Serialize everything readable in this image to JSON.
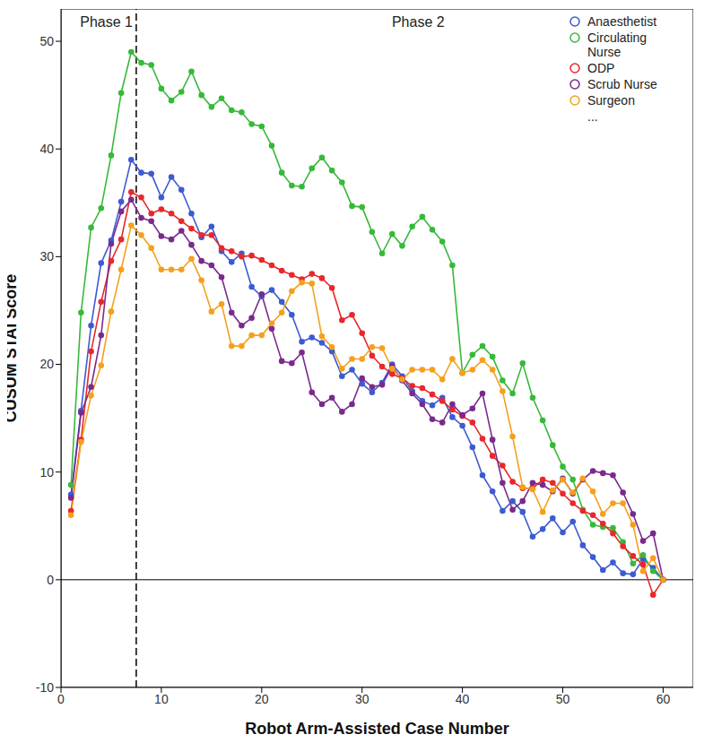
{
  "chart_data": {
    "type": "line",
    "x_label": "Robot Arm-Assisted Case Number",
    "y_label": "CUSUM STAI Score",
    "annotations": [
      "Phase 1",
      "Phase 2",
      "..."
    ],
    "phase_boundary": 7.5,
    "reference_line": 0,
    "x": [
      1,
      2,
      3,
      4,
      5,
      6,
      7,
      8,
      9,
      10,
      11,
      12,
      13,
      14,
      15,
      16,
      17,
      18,
      19,
      20,
      21,
      22,
      23,
      24,
      25,
      26,
      27,
      28,
      29,
      30,
      31,
      32,
      33,
      34,
      35,
      36,
      37,
      38,
      39,
      40,
      41,
      42,
      43,
      44,
      45,
      46,
      47,
      48,
      49,
      50,
      51,
      52,
      53,
      54,
      55,
      56,
      57,
      58,
      59,
      60
    ],
    "xlim": [
      0,
      63
    ],
    "xticks": [
      0,
      10,
      20,
      30,
      40,
      50,
      60
    ],
    "ylim": [
      -10,
      53
    ],
    "yticks": [
      -10,
      0,
      10,
      20,
      30,
      40,
      50
    ],
    "legend": "top right",
    "grid": false,
    "series": [
      {
        "name": "Anaesthetist",
        "color": "#3d5bd1",
        "marker": "circle",
        "line_style": "solid",
        "values": [
          7.9,
          15.7,
          23.6,
          29.4,
          31.5,
          35.1,
          39,
          37.8,
          37.7,
          35.5,
          37.4,
          36.2,
          34,
          31.8,
          32.8,
          30.5,
          29.5,
          30.3,
          27.2,
          26.3,
          26.9,
          25.8,
          24.6,
          22.1,
          22.5,
          22,
          21.2,
          18.9,
          19.5,
          18.2,
          17.4,
          18.3,
          20,
          18.9,
          17.5,
          16.6,
          16.2,
          16.9,
          15.1,
          14.3,
          12.3,
          9.7,
          8.2,
          6.4,
          7.3,
          6.3,
          4,
          4.7,
          5.7,
          4.4,
          5.4,
          3.2,
          2.1,
          0.9,
          1.6,
          0.6,
          0.5,
          1.9,
          1.1,
          0
        ]
      },
      {
        "name": "Circulating Nurse",
        "color": "#37b93a",
        "marker": "circle",
        "line_style": "solid",
        "values": [
          8.8,
          24.8,
          32.7,
          34.5,
          39.4,
          45.2,
          49,
          48,
          47.8,
          45.6,
          44.5,
          45.3,
          47.2,
          45,
          43.9,
          44.7,
          43.6,
          43.4,
          42.3,
          42.1,
          40.3,
          37.8,
          36.6,
          36.5,
          38.2,
          39.2,
          38,
          36.9,
          34.7,
          34.6,
          32.3,
          30.3,
          32.1,
          31,
          32.8,
          33.7,
          32.5,
          31.4,
          29.2,
          19.2,
          20.9,
          21.7,
          20.7,
          18.5,
          17.3,
          20.1,
          16.9,
          14.8,
          12.5,
          10.5,
          9.3,
          6.5,
          5.1,
          4.9,
          4.8,
          3.5,
          1.5,
          2.3,
          0.8,
          0
        ]
      },
      {
        "name": "ODP",
        "color": "#e8282c",
        "marker": "circle",
        "line_style": "solid",
        "values": [
          6.4,
          13,
          21.2,
          25.8,
          29.6,
          31.6,
          36,
          35.5,
          34,
          34.4,
          34,
          33.3,
          32.6,
          32,
          32,
          30.8,
          30.5,
          30,
          30.1,
          29.7,
          29.2,
          28.7,
          28.3,
          27.9,
          28.4,
          28,
          27.1,
          24.1,
          24.6,
          22.9,
          20.8,
          19.8,
          19.1,
          18.7,
          18,
          17.8,
          17.2,
          16.6,
          15.8,
          15.2,
          14.6,
          13.1,
          11.5,
          10.6,
          9.1,
          8.5,
          8.5,
          9.3,
          9,
          8,
          7.1,
          6.4,
          6,
          5.2,
          4.3,
          3.1,
          2.2,
          1.4,
          -1.4,
          0
        ]
      },
      {
        "name": "Scrub Nurse",
        "color": "#7a2a8c",
        "marker": "circle",
        "line_style": "solid",
        "values": [
          7.6,
          15.5,
          17.9,
          22.7,
          31.2,
          34.2,
          35.3,
          33.6,
          33.3,
          31.9,
          31.6,
          32.4,
          31.1,
          29.6,
          29.2,
          28.1,
          24.8,
          23.6,
          24.3,
          26.5,
          23.3,
          20.3,
          20.1,
          21.1,
          17.4,
          16.3,
          16.9,
          15.6,
          16.3,
          18.7,
          17.9,
          18.1,
          19.8,
          18.5,
          17.3,
          16.3,
          14.9,
          14.6,
          16.3,
          15.3,
          15.9,
          17.3,
          13,
          9,
          6.5,
          7.3,
          9,
          8.8,
          8.2,
          9.4,
          8,
          9.3,
          10.1,
          9.9,
          9.7,
          8.1,
          6.1,
          3.6,
          4.3,
          0
        ]
      },
      {
        "name": "Surgeon",
        "color": "#f5a01e",
        "marker": "circle",
        "line_style": "solid",
        "values": [
          6,
          12.8,
          17.1,
          19.9,
          24.9,
          28.8,
          32.9,
          32,
          30.8,
          28.8,
          28.8,
          28.8,
          29.8,
          27.8,
          24.9,
          25.6,
          21.7,
          21.7,
          22.7,
          22.7,
          23.8,
          24.8,
          26.8,
          27.6,
          27.5,
          22.6,
          21.6,
          19.6,
          20.5,
          20.5,
          21.6,
          21.5,
          19.6,
          18.6,
          19.5,
          19.5,
          19.5,
          18.6,
          20.5,
          19.2,
          19.5,
          20.4,
          19.5,
          17.5,
          13.3,
          8.6,
          8.4,
          6.3,
          8.3,
          9.3,
          8.1,
          9.4,
          8.2,
          6.1,
          7.1,
          7.1,
          5.1,
          0.8,
          2,
          0
        ]
      }
    ]
  }
}
